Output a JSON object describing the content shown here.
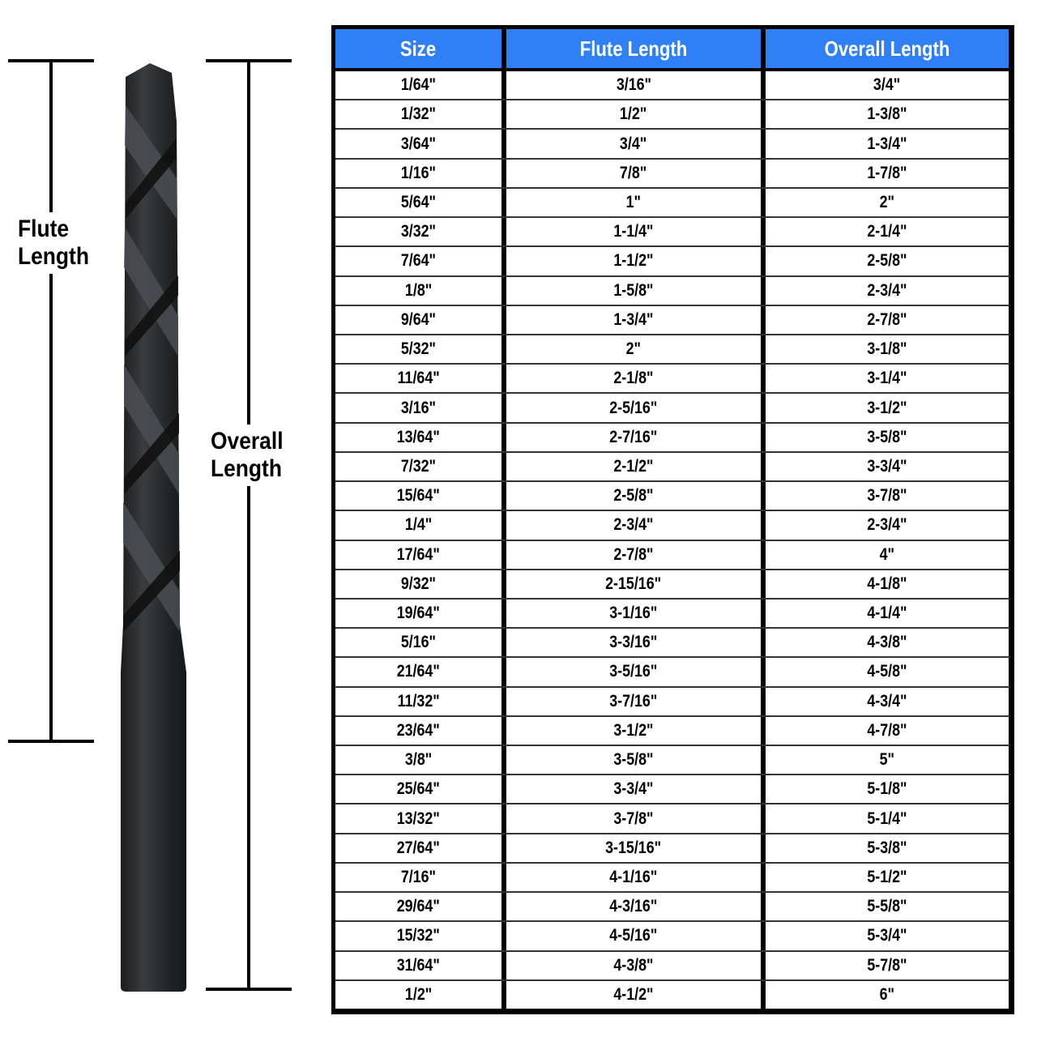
{
  "labels": {
    "flute_length": [
      "Flute",
      "Length"
    ],
    "overall_length": [
      "Overall",
      "Length"
    ]
  },
  "colors": {
    "header_bg": "#2f80f6",
    "header_text": "#ffffff",
    "drill": "#2a2c2e"
  },
  "table": {
    "headers": [
      "Size",
      "Flute Length",
      "Overall Length"
    ],
    "rows": [
      [
        "1/64\"",
        "3/16\"",
        "3/4\""
      ],
      [
        "1/32\"",
        "1/2\"",
        "1-3/8\""
      ],
      [
        "3/64\"",
        "3/4\"",
        "1-3/4\""
      ],
      [
        "1/16\"",
        "7/8\"",
        "1-7/8\""
      ],
      [
        "5/64\"",
        "1\"",
        "2\""
      ],
      [
        "3/32\"",
        "1-1/4\"",
        "2-1/4\""
      ],
      [
        "7/64\"",
        "1-1/2\"",
        "2-5/8\""
      ],
      [
        "1/8\"",
        "1-5/8\"",
        "2-3/4\""
      ],
      [
        "9/64\"",
        "1-3/4\"",
        "2-7/8\""
      ],
      [
        "5/32\"",
        "2\"",
        "3-1/8\""
      ],
      [
        "11/64\"",
        "2-1/8\"",
        "3-1/4\""
      ],
      [
        "3/16\"",
        "2-5/16\"",
        "3-1/2\""
      ],
      [
        "13/64\"",
        "2-7/16\"",
        "3-5/8\""
      ],
      [
        "7/32\"",
        "2-1/2\"",
        "3-3/4\""
      ],
      [
        "15/64\"",
        "2-5/8\"",
        "3-7/8\""
      ],
      [
        "1/4\"",
        "2-3/4\"",
        "2-3/4\""
      ],
      [
        "17/64\"",
        "2-7/8\"",
        "4\""
      ],
      [
        "9/32\"",
        "2-15/16\"",
        "4-1/8\""
      ],
      [
        "19/64\"",
        "3-1/16\"",
        "4-1/4\""
      ],
      [
        "5/16\"",
        "3-3/16\"",
        "4-3/8\""
      ],
      [
        "21/64\"",
        "3-5/16\"",
        "4-5/8\""
      ],
      [
        "11/32\"",
        "3-7/16\"",
        "4-3/4\""
      ],
      [
        "23/64\"",
        "3-1/2\"",
        "4-7/8\""
      ],
      [
        "3/8\"",
        "3-5/8\"",
        "5\""
      ],
      [
        "25/64\"",
        "3-3/4\"",
        "5-1/8\""
      ],
      [
        "13/32\"",
        "3-7/8\"",
        "5-1/4\""
      ],
      [
        "27/64\"",
        "3-15/16\"",
        "5-3/8\""
      ],
      [
        "7/16\"",
        "4-1/16\"",
        "5-1/2\""
      ],
      [
        "29/64\"",
        "4-3/16\"",
        "5-5/8\""
      ],
      [
        "15/32\"",
        "4-5/16\"",
        "5-3/4\""
      ],
      [
        "31/64\"",
        "4-3/8\"",
        "5-7/8\""
      ],
      [
        "1/2\"",
        "4-1/2\"",
        "6\""
      ]
    ]
  }
}
